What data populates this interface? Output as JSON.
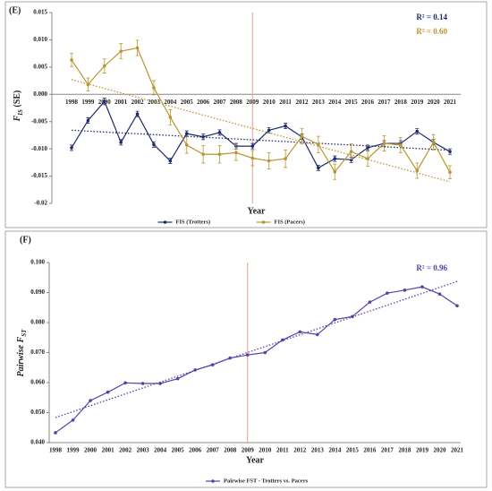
{
  "chart_data": [
    {
      "type": "line",
      "panel": "(E)",
      "y_label": "F",
      "y_label_sub": "IS",
      "y_label_suffix": " (SE)",
      "x_label": "Year",
      "categories": [
        "1998",
        "1999",
        "2000",
        "2001",
        "2002",
        "2003",
        "2004",
        "2005",
        "2006",
        "2007",
        "2008",
        "2009",
        "2010",
        "2011",
        "2012",
        "2013",
        "2014",
        "2015",
        "2016",
        "2017",
        "2018",
        "2019",
        "2020",
        "2021"
      ],
      "series": [
        {
          "name": "FIS (Trotters)",
          "color": "#1f2a6b",
          "values": [
            -0.0098,
            -0.0048,
            -0.0013,
            -0.0088,
            -0.0036,
            -0.0092,
            -0.0122,
            -0.0072,
            -0.0078,
            -0.007,
            -0.0095,
            -0.0095,
            -0.0066,
            -0.0058,
            -0.0078,
            -0.0135,
            -0.0118,
            -0.012,
            -0.0098,
            -0.009,
            -0.009,
            -0.0068,
            -0.0088,
            -0.0105
          ],
          "errors": [
            0.0005,
            0.0005,
            0.0006,
            0.0005,
            0.0005,
            0.0005,
            0.0005,
            0.0005,
            0.0005,
            0.0005,
            0.0005,
            0.0005,
            0.0005,
            0.0005,
            0.0005,
            0.0005,
            0.0005,
            0.0005,
            0.0005,
            0.0005,
            0.0005,
            0.0005,
            0.0005,
            0.0005
          ]
        },
        {
          "name": "FIS (Pacers)",
          "color": "#b8962e",
          "values": [
            0.0063,
            0.0018,
            0.0052,
            0.0079,
            0.0085,
            0.0012,
            -0.0042,
            -0.0093,
            -0.011,
            -0.011,
            -0.0107,
            -0.0117,
            -0.0122,
            -0.0118,
            -0.0077,
            -0.0092,
            -0.0142,
            -0.0105,
            -0.0118,
            -0.009,
            -0.0093,
            -0.014,
            -0.0088,
            -0.0143
          ],
          "errors": [
            0.0012,
            0.0012,
            0.0013,
            0.0014,
            0.0014,
            0.0013,
            0.0014,
            0.0015,
            0.0016,
            0.0016,
            0.0014,
            0.0014,
            0.0015,
            0.0016,
            0.0014,
            0.0015,
            0.0014,
            0.0014,
            0.0014,
            0.0014,
            0.0014,
            0.0014,
            0.0014,
            0.0012
          ]
        }
      ],
      "trendline": true,
      "r2_labels": [
        {
          "text": "R² = 0.14",
          "color": "#1f2a6b"
        },
        {
          "text": "R² = 0.60",
          "color": "#b8962e"
        }
      ],
      "reference_line": "2009",
      "ylim": [
        -0.02,
        0.015
      ],
      "yticks": [
        -0.02,
        -0.015,
        {
          "value": -0.01,
          "label": "-0.010"
        },
        -0.005,
        {
          "value": 0,
          "label": "0.000"
        },
        0.005,
        {
          "value": 0.01,
          "label": "0.010"
        },
        0.015
      ],
      "grid": false,
      "legend": "bottom"
    },
    {
      "type": "line",
      "panel": "(F)",
      "y_label": "Pairwise F",
      "y_label_sub": "ST",
      "y_label_suffix": "",
      "x_label": "Year",
      "categories": [
        "1998",
        "1999",
        "2000",
        "2001",
        "2002",
        "2003",
        "2004",
        "2005",
        "2006",
        "2007",
        "2008",
        "2009",
        "2010",
        "2011",
        "2012",
        "2013",
        "2014",
        "2015",
        "2016",
        "2017",
        "2018",
        "2019",
        "2020",
        "2021"
      ],
      "series": [
        {
          "name": "Pairwise FST - Trotters vs. Pacers",
          "color": "#5b3fa8",
          "values": [
            0.0433,
            0.0475,
            0.054,
            0.0568,
            0.0599,
            0.0597,
            0.0597,
            0.0613,
            0.0642,
            0.0659,
            0.0682,
            0.0692,
            0.07,
            0.0742,
            0.0769,
            0.076,
            0.081,
            0.082,
            0.0868,
            0.0898,
            0.0908,
            0.0919,
            0.0895,
            0.0856
          ]
        }
      ],
      "trendline": true,
      "r2_labels": [
        {
          "text": "R² = 0.96",
          "color": "#5b3fa8"
        }
      ],
      "reference_line": "2009",
      "ylim": [
        0.04,
        0.1
      ],
      "yticks": [
        {
          "value": 0.04,
          "label": "0.040"
        },
        {
          "value": 0.05,
          "label": "0.050"
        },
        {
          "value": 0.06,
          "label": "0.060"
        },
        {
          "value": 0.07,
          "label": "0.070"
        },
        {
          "value": 0.08,
          "label": "0.080"
        },
        {
          "value": 0.09,
          "label": "0.090"
        },
        {
          "value": 0.1,
          "label": "0.100"
        }
      ],
      "grid": false,
      "legend": "bottom"
    }
  ]
}
